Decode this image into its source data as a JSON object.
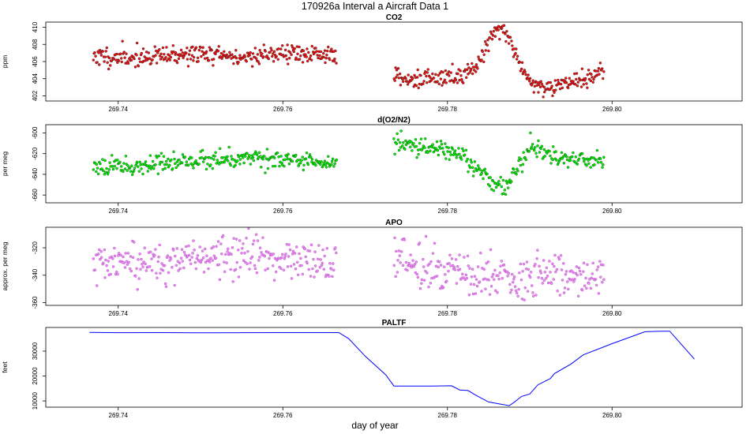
{
  "figure": {
    "title": "170926a   Interval a Aircraft Data 1",
    "xlabel": "day of year"
  },
  "chart_data": [
    {
      "type": "scatter",
      "title": "CO2",
      "ylabel": "ppm",
      "xlim": [
        269.7312,
        269.8158
      ],
      "ylim": [
        401.4,
        410.6
      ],
      "xticks": [
        269.74,
        269.76,
        269.78,
        269.8
      ],
      "xtick_labels": [
        "269.74",
        "269.76",
        "269.78",
        "269.80"
      ],
      "yticks": [
        402,
        404,
        406,
        408,
        410
      ],
      "ytick_labels": [
        "402",
        "404",
        "406",
        "408",
        "410"
      ],
      "fill_color": "#ee1111",
      "outline_color": "#222222",
      "series": [
        {
          "x": [
            269.737,
            269.74,
            269.743,
            269.746,
            269.749,
            269.752,
            269.755,
            269.758,
            269.761,
            269.764,
            269.7665
          ],
          "y": [
            406.7,
            406.4,
            406.5,
            406.6,
            406.9,
            406.8,
            406.4,
            406.9,
            407.0,
            406.7,
            406.9
          ]
        },
        {
          "x": [
            269.7735,
            269.776,
            269.779,
            269.782,
            269.784,
            269.785,
            269.786,
            269.787,
            269.788,
            269.79,
            269.792,
            269.795,
            269.799
          ],
          "y": [
            404.4,
            403.8,
            404.0,
            404.3,
            406.3,
            408.5,
            409.8,
            409.6,
            407.5,
            403.5,
            403.0,
            403.6,
            404.7
          ]
        }
      ]
    },
    {
      "type": "scatter",
      "title": "d(O2/N2)",
      "ylabel": "per meg",
      "xlim": [
        269.7312,
        269.8158
      ],
      "ylim": [
        -667.5,
        -592.0
      ],
      "xticks": [
        269.74,
        269.76,
        269.78,
        269.8
      ],
      "xtick_labels": [
        "269.74",
        "269.76",
        "269.78",
        "269.80"
      ],
      "yticks": [
        -600,
        -620,
        -640,
        -660
      ],
      "ytick_labels": [
        "-600",
        "-620",
        "-640",
        "-660"
      ],
      "fill_color": "#00ee00",
      "outline_color": "#113311",
      "series": [
        {
          "x": [
            269.737,
            269.741,
            269.745,
            269.749,
            269.753,
            269.757,
            269.761,
            269.764,
            269.7665
          ],
          "y": [
            -630,
            -632,
            -630,
            -627,
            -625,
            -622,
            -628,
            -630,
            -629
          ]
        },
        {
          "x": [
            269.7735,
            269.776,
            269.779,
            269.782,
            269.784,
            269.786,
            269.787,
            269.788,
            269.79,
            269.792,
            269.795,
            269.799
          ],
          "y": [
            -609,
            -612,
            -614,
            -620,
            -640,
            -650,
            -654,
            -640,
            -614,
            -620,
            -625,
            -627
          ]
        }
      ]
    },
    {
      "type": "scatter",
      "title": "APO",
      "ylabel": "approx. per meg",
      "xlim": [
        269.7312,
        269.8158
      ],
      "ylim": [
        -362,
        -305
      ],
      "xticks": [
        269.74,
        269.76,
        269.78,
        269.8
      ],
      "xtick_labels": [
        "269.74",
        "269.76",
        "269.78",
        "269.80"
      ],
      "yticks": [
        -320,
        -340,
        -360
      ],
      "ytick_labels": [
        "-320",
        "-340",
        "-360"
      ],
      "fill_color": "#ee88ee",
      "outline_color": "#9a3fbf",
      "series": [
        {
          "x": [
            269.737,
            269.741,
            269.745,
            269.749,
            269.753,
            269.757,
            269.761,
            269.764,
            269.7665
          ],
          "y": [
            -332,
            -334,
            -330,
            -328,
            -327,
            -326,
            -330,
            -331,
            -330
          ]
        },
        {
          "x": [
            269.7735,
            269.776,
            269.779,
            269.782,
            269.785,
            269.788,
            269.791,
            269.795,
            269.799
          ],
          "y": [
            -326,
            -333,
            -336,
            -338,
            -342,
            -344,
            -339,
            -340,
            -342
          ]
        }
      ]
    },
    {
      "type": "line",
      "title": "PALTF",
      "ylabel": "feet",
      "xlim": [
        269.7312,
        269.8158
      ],
      "ylim": [
        7500,
        39500
      ],
      "xticks": [
        269.74,
        269.76,
        269.78,
        269.8
      ],
      "xtick_labels": [
        "269.74",
        "269.76",
        "269.78",
        "269.80"
      ],
      "yticks": [
        10000,
        20000,
        30000
      ],
      "ytick_labels": [
        "10000",
        "20000",
        "30000"
      ],
      "line_color": "#0000ff",
      "series": [
        {
          "x": [
            269.7365,
            269.74,
            269.745,
            269.75,
            269.755,
            269.76,
            269.765,
            269.7668,
            269.768,
            269.77,
            269.7725,
            269.7735,
            269.778,
            269.7805,
            269.7815,
            269.7825,
            269.7835,
            269.785,
            269.7865,
            269.7875,
            269.788,
            269.789,
            269.79,
            269.791,
            269.7925,
            269.793,
            269.795,
            269.7965,
            269.8,
            269.804,
            269.806,
            269.807,
            269.81
          ],
          "y": [
            37500,
            37400,
            37450,
            37350,
            37400,
            37450,
            37450,
            37450,
            35000,
            28000,
            20500,
            16000,
            16000,
            16100,
            14400,
            14200,
            12200,
            9600,
            8700,
            8100,
            9200,
            11800,
            12800,
            16500,
            19000,
            21000,
            24800,
            28500,
            33000,
            37800,
            38000,
            38000,
            26800
          ]
        }
      ]
    }
  ]
}
